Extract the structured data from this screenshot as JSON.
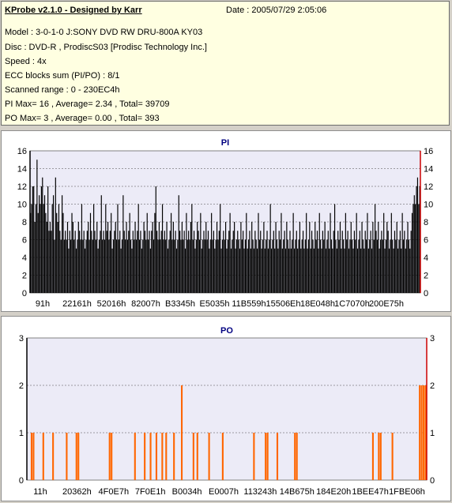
{
  "header": {
    "app_title": "KProbe v2.1.0 - Designed by Karr",
    "date": "Date : 2005/07/29 2:05:06",
    "lines": [
      "Model : 3-0-1-0 J:SONY    DVD RW DRU-800A  KY03",
      "Disc : DVD-R , ProdiscS03   [Prodisc Technology Inc.]",
      "Speed : 4x",
      "ECC blocks sum (PI/PO) : 8/1",
      "Scanned range : 0 - 230EC4h",
      "PI Max= 16 , Average= 2.34 , Total= 39709",
      "PO Max= 3 , Average= 0.00 , Total= 393"
    ]
  },
  "colors": {
    "background": "#d4d0c8",
    "panel_bg": "#ffffe1",
    "plot_bg": "#ecebf7",
    "grid": "#4a4a4a",
    "pi_fill": "#000000",
    "po_fill": "#ff6600",
    "right_marker": "#cc0000",
    "chart_title": "#000080"
  },
  "chart_data": [
    {
      "type": "bar",
      "title": "PI",
      "ylim": [
        0,
        16
      ],
      "yticks": [
        0,
        2,
        4,
        6,
        8,
        10,
        12,
        14,
        16
      ],
      "xticks": [
        "91h",
        "22161h",
        "52016h",
        "82007h",
        "B3345h",
        "E5035h",
        "11B559h",
        "15506Eh",
        "18E048h",
        "1C7070h",
        "200E75h"
      ],
      "grid": "horizontal dashed",
      "series": [
        {
          "values": [
            9,
            10,
            12,
            12,
            8,
            10,
            15,
            9,
            11,
            10,
            12,
            13,
            10,
            11,
            9,
            8,
            12,
            7,
            8,
            7,
            10,
            11,
            6,
            13,
            9,
            8,
            10,
            7,
            6,
            11,
            9,
            6,
            7,
            6,
            8,
            5,
            7,
            6,
            9,
            8,
            6,
            7,
            5,
            6,
            8,
            7,
            6,
            10,
            6,
            7,
            5,
            6,
            7,
            8,
            6,
            9,
            7,
            6,
            10,
            7,
            6,
            8,
            5,
            6,
            7,
            11,
            6,
            7,
            6,
            10,
            7,
            8,
            6,
            7,
            9,
            5,
            6,
            7,
            8,
            6,
            10,
            6,
            7,
            5,
            6,
            11,
            7,
            6,
            8,
            6,
            7,
            9,
            6,
            5,
            7,
            6,
            8,
            6,
            7,
            10,
            6,
            7,
            5,
            6,
            8,
            7,
            6,
            9,
            6,
            7,
            5,
            7,
            8,
            6,
            9,
            12,
            7,
            6,
            8,
            6,
            7,
            10,
            6,
            7,
            6,
            8,
            5,
            6,
            7,
            9,
            6,
            8,
            6,
            7,
            5,
            6,
            11,
            7,
            6,
            8,
            6,
            7,
            5,
            9,
            6,
            7,
            6,
            8,
            10,
            6,
            7,
            5,
            6,
            8,
            7,
            6,
            9,
            5,
            6,
            7,
            6,
            8,
            6,
            7,
            5,
            6,
            9,
            6,
            7,
            5,
            6,
            8,
            6,
            7,
            10,
            5,
            6,
            7,
            6,
            8,
            5,
            6,
            7,
            9,
            5,
            6,
            7,
            8,
            5,
            6,
            7,
            6,
            5,
            8,
            6,
            7,
            5,
            6,
            9,
            5,
            6,
            7,
            5,
            8,
            6,
            5,
            7,
            6,
            5,
            9,
            6,
            7,
            5,
            6,
            8,
            5,
            6,
            7,
            5,
            6,
            10,
            5,
            6,
            7,
            5,
            8,
            6,
            5,
            7,
            6,
            9,
            5,
            6,
            7,
            5,
            8,
            6,
            5,
            7,
            5,
            6,
            9,
            5,
            6,
            7,
            5,
            6,
            8,
            5,
            6,
            7,
            5,
            6,
            9,
            5,
            6,
            8,
            5,
            7,
            6,
            5,
            8,
            6,
            7,
            5,
            9,
            6,
            5,
            7,
            6,
            8,
            5,
            6,
            7,
            5,
            9,
            6,
            5,
            7,
            10,
            6,
            5,
            7,
            6,
            8,
            5,
            7,
            6,
            5,
            9,
            6,
            7,
            5,
            6,
            8,
            6,
            5,
            7,
            6,
            9,
            5,
            6,
            7,
            5,
            8,
            6,
            5,
            7,
            6,
            9,
            5,
            6,
            7,
            5,
            8,
            6,
            10,
            7,
            6,
            8,
            5,
            6,
            7,
            6,
            9,
            5,
            6,
            8,
            7,
            5,
            6,
            9,
            6,
            5,
            7,
            6,
            8,
            5,
            6,
            7,
            5,
            9,
            6,
            7,
            5,
            6,
            8,
            6,
            5,
            7,
            9,
            10,
            11,
            10,
            12,
            13,
            10,
            12
          ]
        }
      ]
    },
    {
      "type": "bar",
      "title": "PO",
      "ylim": [
        0,
        3
      ],
      "yticks": [
        0,
        1,
        2,
        3
      ],
      "xticks": [
        "11h",
        "20362h",
        "4F0E7h",
        "7F0E1h",
        "B0034h",
        "E0007h",
        "113243h",
        "14B675h",
        "184E20h",
        "1BEE47h",
        "1FBE06h"
      ],
      "grid": "horizontal dashed",
      "series": [
        {
          "values": [
            0,
            0,
            1,
            1,
            0,
            0,
            0,
            0,
            1,
            0,
            0,
            0,
            0,
            1,
            0,
            0,
            0,
            0,
            0,
            0,
            1,
            0,
            0,
            0,
            0,
            1,
            1,
            0,
            0,
            0,
            0,
            0,
            0,
            0,
            0,
            0,
            0,
            0,
            0,
            0,
            0,
            0,
            1,
            1,
            0,
            0,
            0,
            0,
            0,
            0,
            0,
            0,
            0,
            0,
            0,
            1,
            0,
            0,
            0,
            0,
            1,
            0,
            0,
            1,
            0,
            0,
            1,
            0,
            0,
            1,
            0,
            1,
            0,
            0,
            0,
            1,
            0,
            0,
            0,
            2,
            0,
            0,
            0,
            0,
            0,
            1,
            0,
            1,
            0,
            0,
            0,
            0,
            0,
            1,
            0,
            0,
            0,
            0,
            0,
            0,
            1,
            0,
            0,
            0,
            0,
            0,
            0,
            0,
            0,
            0,
            0,
            0,
            0,
            0,
            0,
            0,
            1,
            0,
            0,
            0,
            0,
            0,
            1,
            1,
            0,
            0,
            0,
            0,
            1,
            0,
            0,
            0,
            0,
            0,
            0,
            0,
            0,
            1,
            1,
            0,
            0,
            0,
            0,
            0,
            0,
            0,
            0,
            0,
            0,
            0,
            0,
            0,
            0,
            0,
            0,
            0,
            0,
            0,
            0,
            0,
            0,
            0,
            0,
            0,
            0,
            0,
            0,
            0,
            0,
            0,
            0,
            0,
            0,
            0,
            0,
            0,
            0,
            1,
            0,
            0,
            1,
            1,
            0,
            0,
            0,
            0,
            0,
            1,
            0,
            0,
            0,
            0,
            0,
            0,
            0,
            0,
            0,
            0,
            0,
            0,
            0,
            2,
            2,
            2,
            2
          ]
        }
      ]
    }
  ]
}
